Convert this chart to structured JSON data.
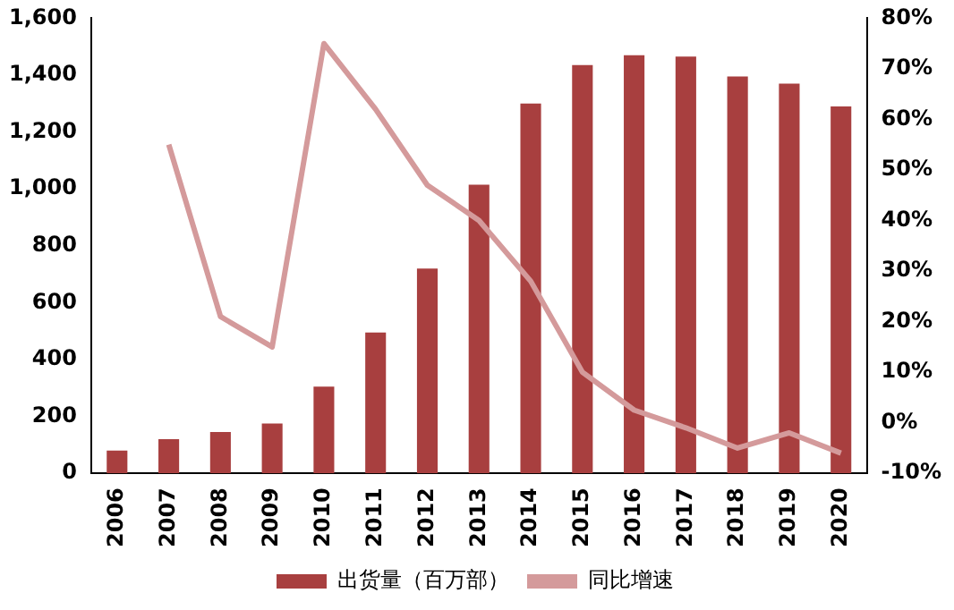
{
  "chart_data": {
    "type": "bar",
    "categories": [
      "2006",
      "2007",
      "2008",
      "2009",
      "2010",
      "2011",
      "2012",
      "2013",
      "2014",
      "2015",
      "2016",
      "2017",
      "2018",
      "2019",
      "2020"
    ],
    "series": [
      {
        "name": "出货量（百万部）",
        "color": "#a83f3f",
        "values": [
          80,
          120,
          145,
          175,
          305,
          495,
          720,
          1015,
          1300,
          1435,
          1470,
          1465,
          1395,
          1370,
          1290
        ]
      },
      {
        "name": "同比增速",
        "type": "line",
        "axis": "y2",
        "color": "#d49a9b",
        "values": [
          null,
          55,
          21,
          15,
          75,
          62,
          47,
          40,
          28,
          10,
          2.5,
          -1,
          -5,
          -2,
          -6
        ]
      }
    ],
    "ylim": [
      0,
      1600
    ],
    "yticks": [
      {
        "value": 0,
        "label": "0"
      },
      {
        "value": 200,
        "label": "200"
      },
      {
        "value": 400,
        "label": "400"
      },
      {
        "value": 600,
        "label": "600"
      },
      {
        "value": 800,
        "label": "800"
      },
      {
        "value": 1000,
        "label": "1,000"
      },
      {
        "value": 1200,
        "label": "1,200"
      },
      {
        "value": 1400,
        "label": "1,400"
      },
      {
        "value": 1600,
        "label": "1,600"
      }
    ],
    "y2lim": [
      -10,
      80
    ],
    "y2ticks": [
      {
        "value": -10,
        "label": "-10%"
      },
      {
        "value": 0,
        "label": "0%"
      },
      {
        "value": 10,
        "label": "10%"
      },
      {
        "value": 20,
        "label": "20%"
      },
      {
        "value": 30,
        "label": "30%"
      },
      {
        "value": 40,
        "label": "40%"
      },
      {
        "value": 50,
        "label": "50%"
      },
      {
        "value": 60,
        "label": "60%"
      },
      {
        "value": 70,
        "label": "70%"
      },
      {
        "value": 80,
        "label": "80%"
      }
    ],
    "grid": false,
    "legend": "bottom",
    "marker": "none"
  }
}
